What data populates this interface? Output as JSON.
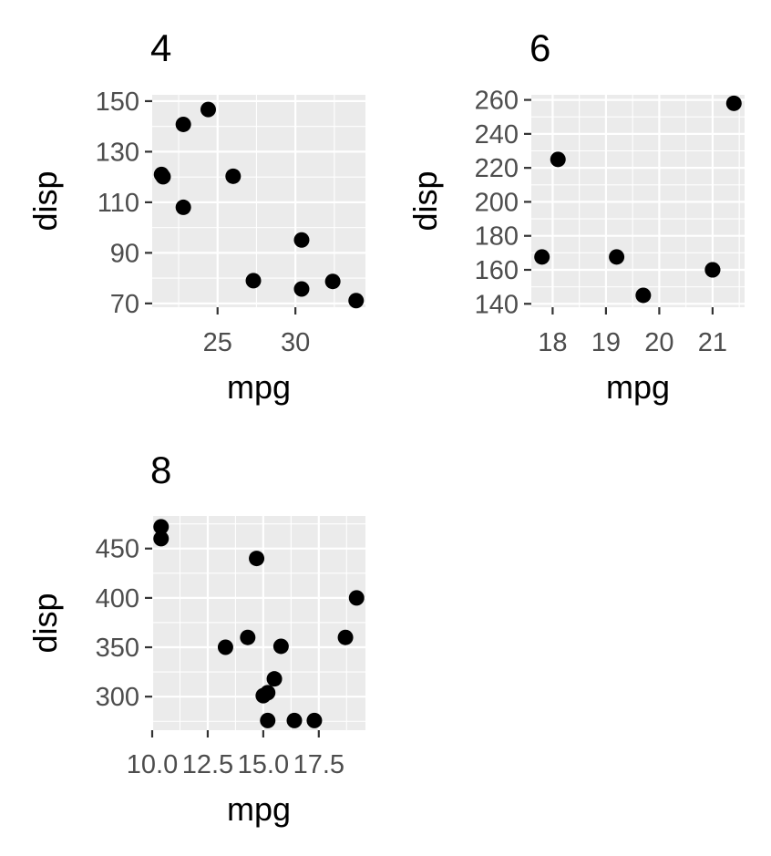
{
  "chart_data": [
    {
      "type": "scatter",
      "title": "4",
      "xlabel": "mpg",
      "ylabel": "disp",
      "xlim": [
        20.8,
        34.5
      ],
      "ylim": [
        68.5,
        152.5
      ],
      "xticks": [
        25,
        30
      ],
      "xtick_labels": [
        "25",
        "30"
      ],
      "yticks": [
        70,
        90,
        110,
        130,
        150
      ],
      "ytick_labels": [
        "70",
        "90",
        "110",
        "130",
        "150"
      ],
      "grid": true,
      "points": [
        {
          "x": 21.4,
          "y": 121.0
        },
        {
          "x": 21.5,
          "y": 120.1
        },
        {
          "x": 22.8,
          "y": 108.0
        },
        {
          "x": 22.8,
          "y": 140.8
        },
        {
          "x": 24.4,
          "y": 146.7
        },
        {
          "x": 26.0,
          "y": 120.3
        },
        {
          "x": 27.3,
          "y": 79.0
        },
        {
          "x": 30.4,
          "y": 75.7
        },
        {
          "x": 30.4,
          "y": 95.1
        },
        {
          "x": 32.4,
          "y": 78.7
        },
        {
          "x": 33.9,
          "y": 71.1
        }
      ]
    },
    {
      "type": "scatter",
      "title": "6",
      "xlabel": "mpg",
      "ylabel": "disp",
      "xlim": [
        17.6,
        21.6
      ],
      "ylim": [
        138,
        263
      ],
      "xticks": [
        18,
        19,
        20,
        21
      ],
      "xtick_labels": [
        "18",
        "19",
        "20",
        "21"
      ],
      "yticks": [
        140,
        160,
        180,
        200,
        220,
        240,
        260
      ],
      "ytick_labels": [
        "140",
        "160",
        "180",
        "200",
        "220",
        "240",
        "260"
      ],
      "grid": true,
      "points": [
        {
          "x": 21.0,
          "y": 160.0
        },
        {
          "x": 21.0,
          "y": 160.0
        },
        {
          "x": 21.4,
          "y": 258.0
        },
        {
          "x": 18.1,
          "y": 225.0
        },
        {
          "x": 19.2,
          "y": 167.6
        },
        {
          "x": 17.8,
          "y": 167.6
        },
        {
          "x": 19.7,
          "y": 145.0
        }
      ]
    },
    {
      "type": "scatter",
      "title": "8",
      "xlabel": "mpg",
      "ylabel": "disp",
      "xlim": [
        10.0,
        19.6
      ],
      "ylim": [
        266,
        483
      ],
      "xticks": [
        10.0,
        12.5,
        15.0,
        17.5
      ],
      "xtick_labels": [
        "10.0",
        "12.5",
        "15.0",
        "17.5"
      ],
      "yticks": [
        300,
        350,
        400,
        450
      ],
      "ytick_labels": [
        "300",
        "350",
        "400",
        "450"
      ],
      "grid": true,
      "points": [
        {
          "x": 18.7,
          "y": 360.0
        },
        {
          "x": 14.3,
          "y": 360.0
        },
        {
          "x": 16.4,
          "y": 275.8
        },
        {
          "x": 17.3,
          "y": 275.8
        },
        {
          "x": 15.2,
          "y": 275.8
        },
        {
          "x": 10.4,
          "y": 472.0
        },
        {
          "x": 10.4,
          "y": 460.0
        },
        {
          "x": 14.7,
          "y": 440.0
        },
        {
          "x": 15.5,
          "y": 318.0
        },
        {
          "x": 15.2,
          "y": 304.0
        },
        {
          "x": 13.3,
          "y": 350.0
        },
        {
          "x": 19.2,
          "y": 400.0
        },
        {
          "x": 15.8,
          "y": 351.0
        },
        {
          "x": 15.0,
          "y": 301.0
        }
      ]
    }
  ]
}
